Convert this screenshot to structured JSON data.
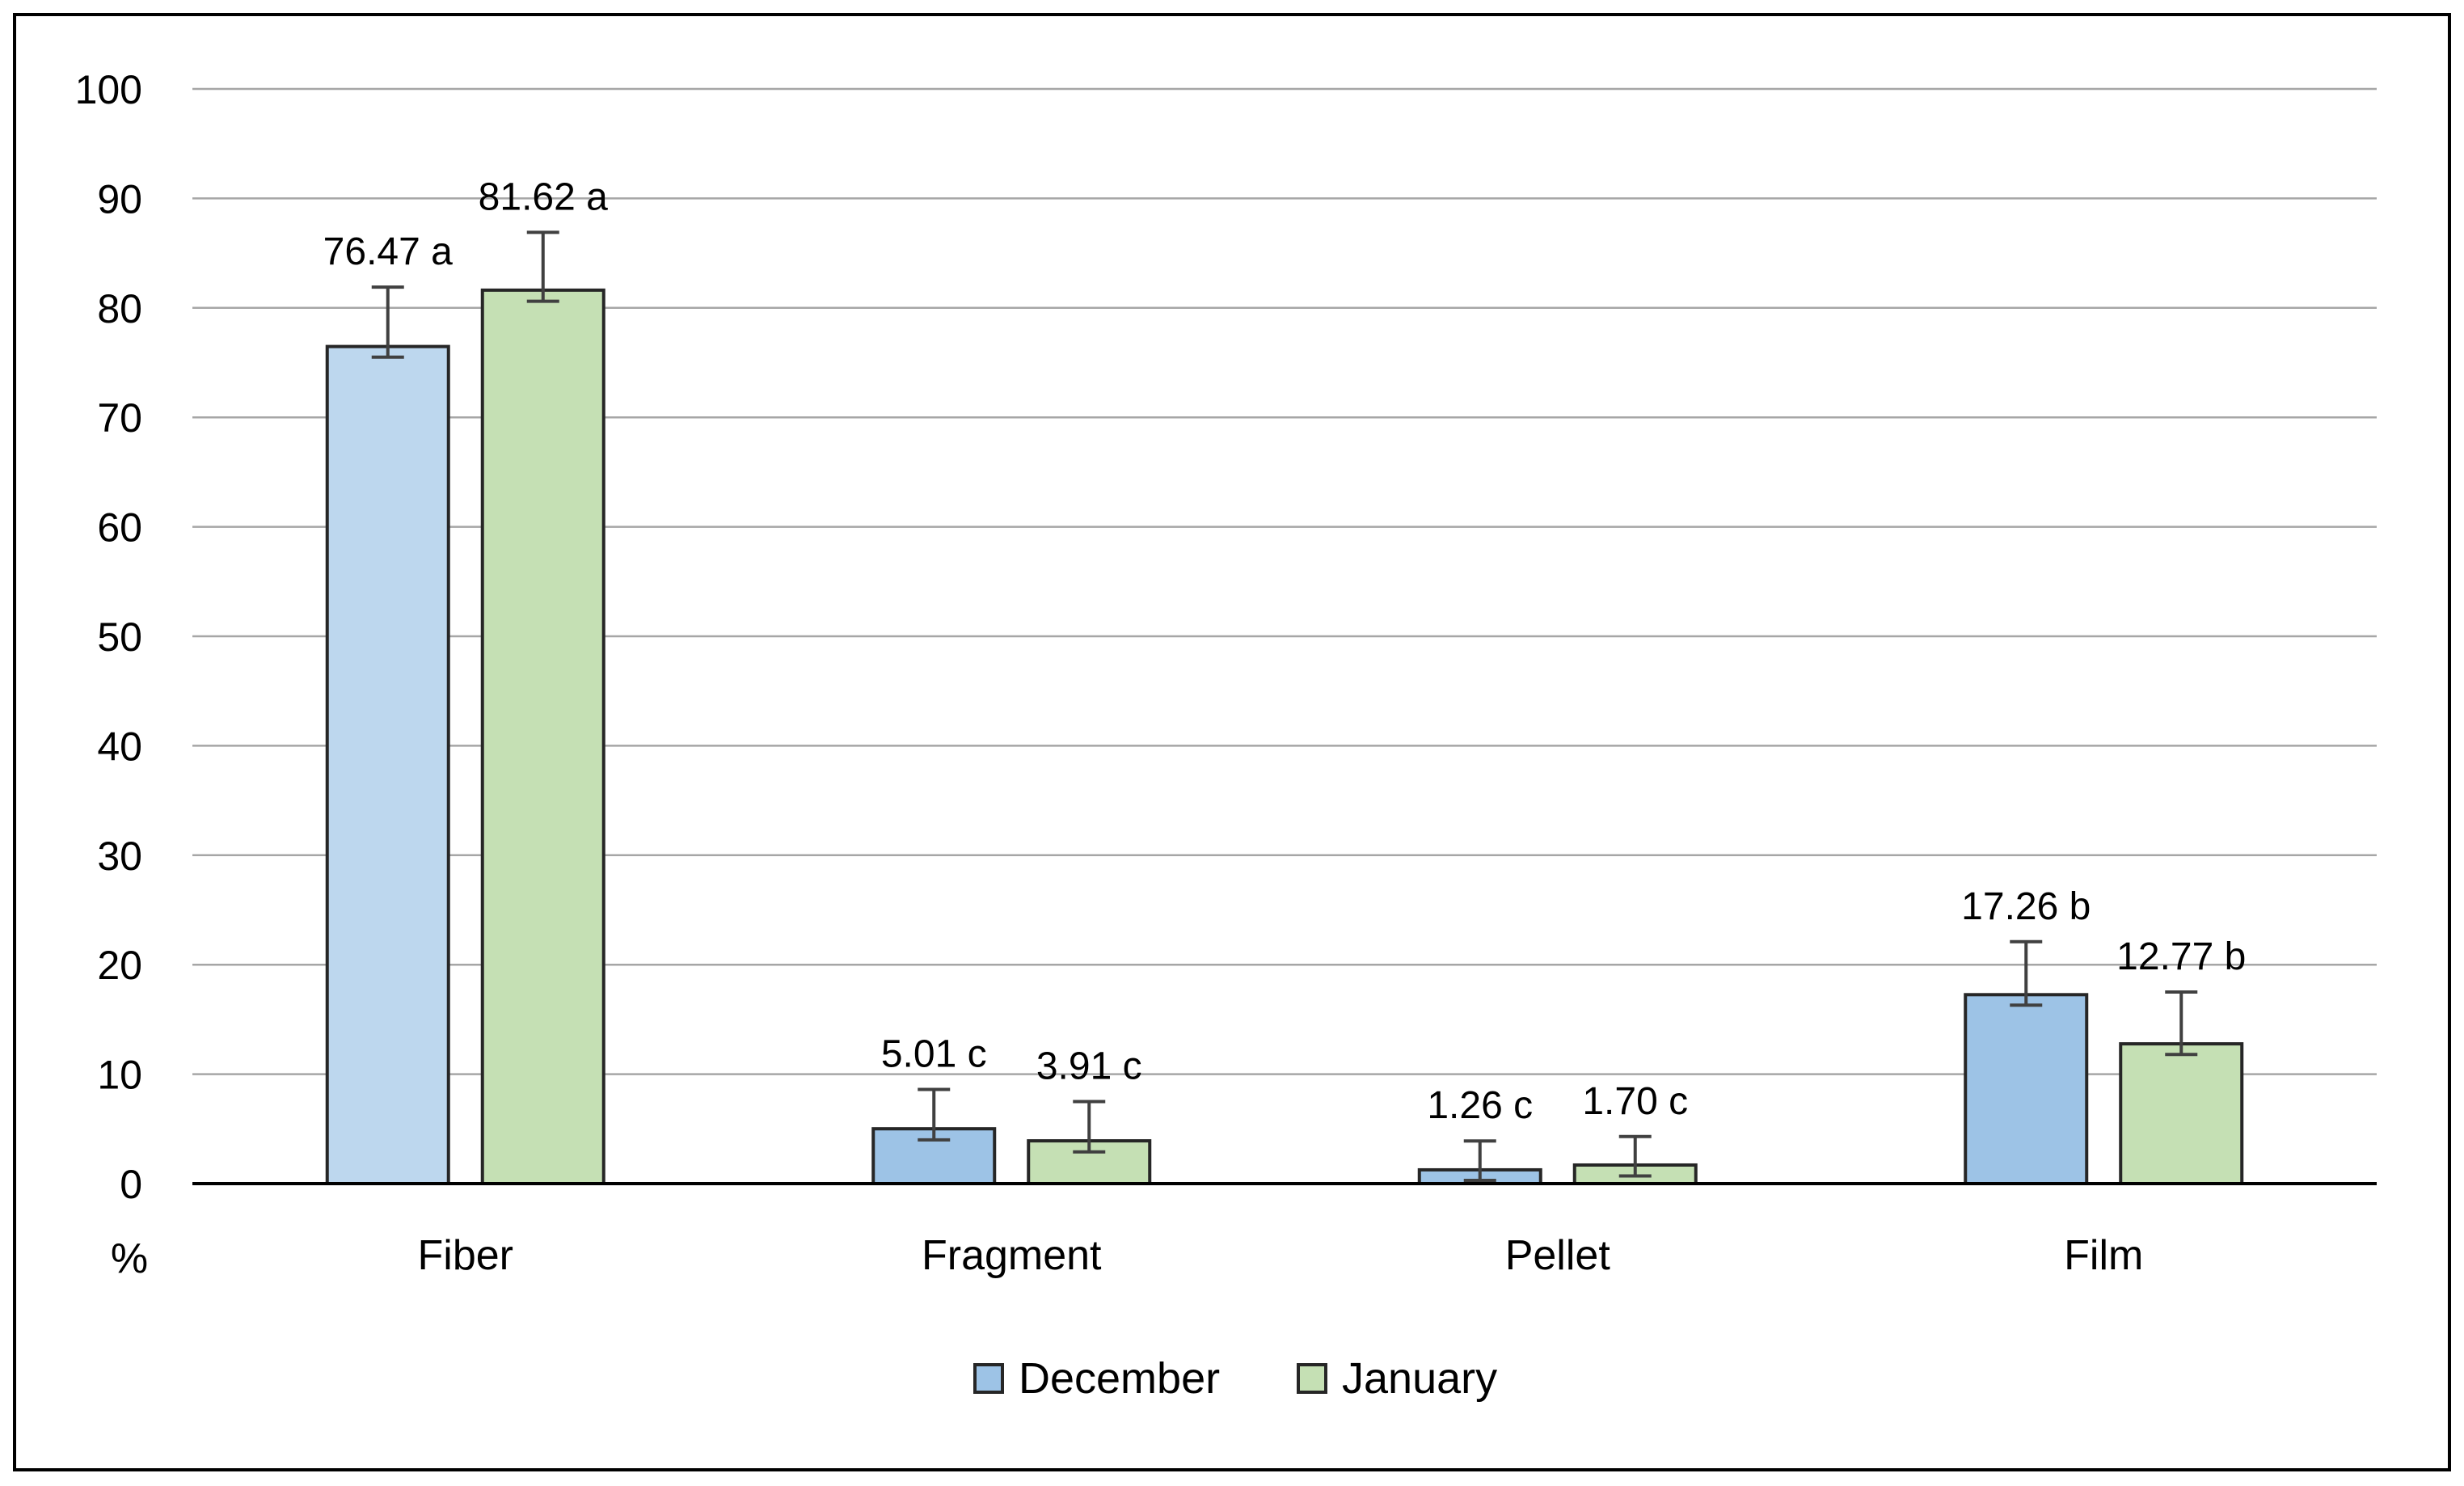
{
  "chart_data": {
    "type": "bar",
    "categories": [
      "Fiber",
      "Fragment",
      "Pellet",
      "Film"
    ],
    "series": [
      {
        "name": "December",
        "values": [
          76.47,
          5.01,
          1.26,
          17.26
        ],
        "error_low": [
          75.5,
          4.0,
          0.3,
          16.3
        ],
        "error_high": [
          81.9,
          8.6,
          3.9,
          22.1
        ],
        "labels": [
          "76.47 a",
          "5.01 c",
          "1.26 c",
          "17.26 b"
        ],
        "color": "#bdd7ee",
        "color_alt": "#9dc3e6"
      },
      {
        "name": "January",
        "values": [
          81.62,
          3.91,
          1.7,
          12.77
        ],
        "error_low": [
          80.6,
          2.9,
          0.7,
          11.8
        ],
        "error_high": [
          86.9,
          7.5,
          4.3,
          17.5
        ],
        "labels": [
          "81.62 a",
          "3.91 c",
          "1.70 c",
          "12.77 b"
        ],
        "color": "#c5e0b4"
      }
    ],
    "yticks": [
      0,
      10,
      20,
      30,
      40,
      50,
      60,
      70,
      80,
      90,
      100
    ],
    "ylim": [
      0,
      100
    ],
    "ylabel": "%",
    "xlabel": "",
    "title": "",
    "grid": true,
    "legend": "bottom-center",
    "colors": {
      "grid": "#a6a6a6",
      "axis": "#000000",
      "bar_border": "#262626",
      "error_bar": "#404040",
      "frame": "#000000"
    }
  }
}
